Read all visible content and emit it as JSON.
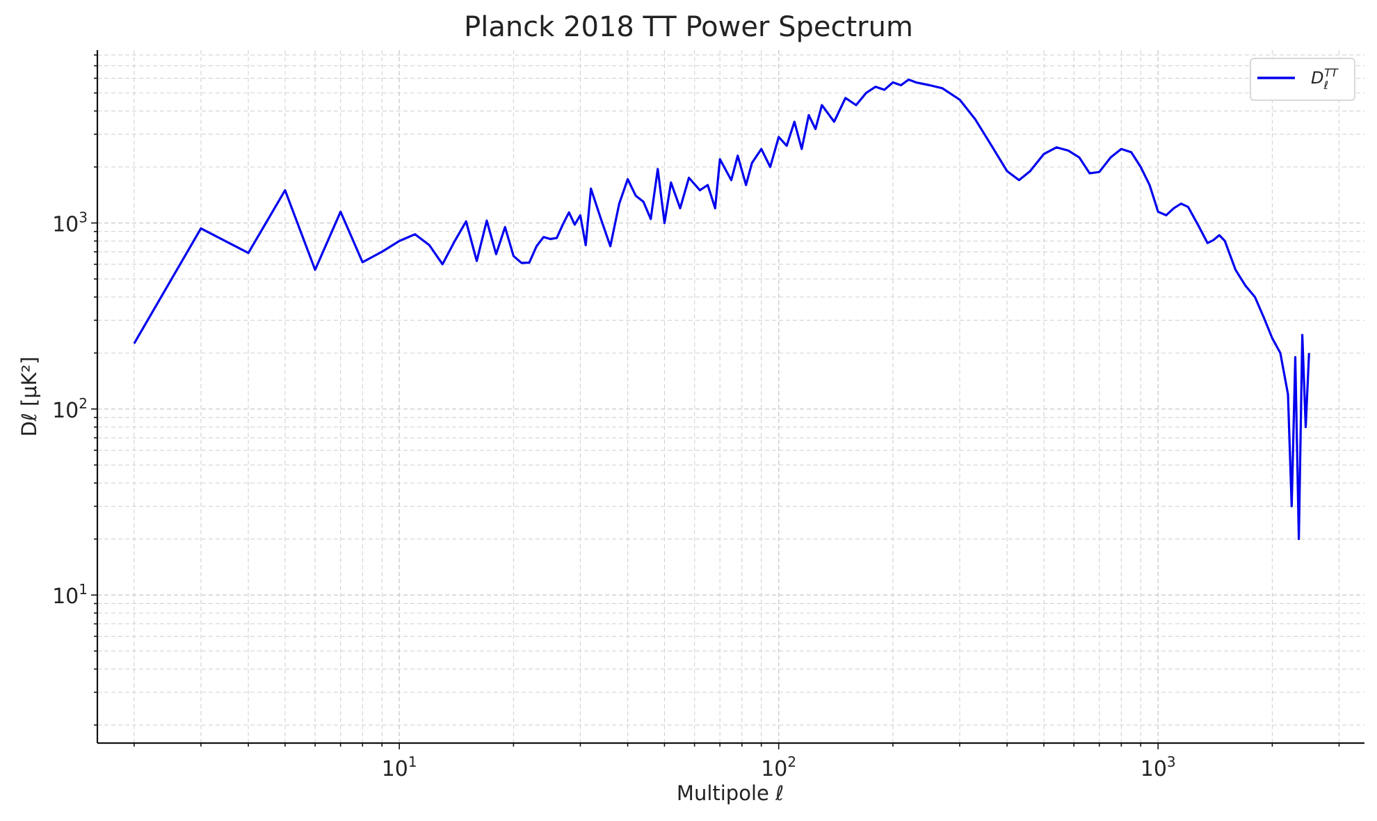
{
  "chart_data": {
    "type": "line",
    "title": "Planck 2018 TT Power Spectrum",
    "xlabel": "Multipole ℓ",
    "ylabel": "Dℓ [μK²]",
    "xscale": "log",
    "yscale": "log",
    "xlim": [
      1.6,
      3500
    ],
    "ylim": [
      1.6,
      8500
    ],
    "xticks": [
      {
        "value": 10,
        "base": "10",
        "exp": "1"
      },
      {
        "value": 100,
        "base": "10",
        "exp": "2"
      },
      {
        "value": 1000,
        "base": "10",
        "exp": "3"
      }
    ],
    "yticks": [
      {
        "value": 10,
        "base": "10",
        "exp": "1"
      },
      {
        "value": 100,
        "base": "10",
        "exp": "2"
      },
      {
        "value": 1000,
        "base": "10",
        "exp": "3"
      }
    ],
    "grid": true,
    "legend": {
      "placement": "top-right",
      "entries": [
        {
          "label_main": "D",
          "label_sub": "ℓ",
          "label_sup": "TT",
          "color": "#0000ee"
        }
      ]
    },
    "series": [
      {
        "name": "Dℓ TT",
        "color": "#0000ee",
        "points": [
          [
            2,
            225
          ],
          [
            3,
            935
          ],
          [
            4,
            690
          ],
          [
            5,
            1500
          ],
          [
            6,
            560
          ],
          [
            7,
            1150
          ],
          [
            8,
            615
          ],
          [
            9,
            700
          ],
          [
            10,
            800
          ],
          [
            11,
            870
          ],
          [
            12,
            760
          ],
          [
            13,
            600
          ],
          [
            14,
            800
          ],
          [
            15,
            1020
          ],
          [
            16,
            625
          ],
          [
            17,
            1030
          ],
          [
            18,
            680
          ],
          [
            19,
            950
          ],
          [
            20,
            665
          ],
          [
            21,
            610
          ],
          [
            22,
            612
          ],
          [
            23,
            750
          ],
          [
            24,
            840
          ],
          [
            25,
            820
          ],
          [
            26,
            830
          ],
          [
            27,
            985
          ],
          [
            28,
            1140
          ],
          [
            29,
            980
          ],
          [
            30,
            1100
          ],
          [
            31,
            760
          ],
          [
            32,
            1530
          ],
          [
            34,
            1050
          ],
          [
            36,
            750
          ],
          [
            38,
            1270
          ],
          [
            40,
            1720
          ],
          [
            42,
            1400
          ],
          [
            44,
            1300
          ],
          [
            46,
            1050
          ],
          [
            48,
            1950
          ],
          [
            50,
            1000
          ],
          [
            52,
            1650
          ],
          [
            55,
            1200
          ],
          [
            58,
            1750
          ],
          [
            62,
            1500
          ],
          [
            65,
            1600
          ],
          [
            68,
            1200
          ],
          [
            70,
            2200
          ],
          [
            75,
            1700
          ],
          [
            78,
            2300
          ],
          [
            82,
            1600
          ],
          [
            85,
            2100
          ],
          [
            90,
            2500
          ],
          [
            95,
            2000
          ],
          [
            100,
            2900
          ],
          [
            105,
            2600
          ],
          [
            110,
            3500
          ],
          [
            115,
            2500
          ],
          [
            120,
            3800
          ],
          [
            125,
            3200
          ],
          [
            130,
            4300
          ],
          [
            140,
            3500
          ],
          [
            150,
            4700
          ],
          [
            160,
            4300
          ],
          [
            170,
            5000
          ],
          [
            180,
            5400
          ],
          [
            190,
            5200
          ],
          [
            200,
            5700
          ],
          [
            210,
            5500
          ],
          [
            220,
            5900
          ],
          [
            230,
            5700
          ],
          [
            250,
            5500
          ],
          [
            270,
            5300
          ],
          [
            300,
            4600
          ],
          [
            330,
            3600
          ],
          [
            360,
            2700
          ],
          [
            400,
            1900
          ],
          [
            430,
            1700
          ],
          [
            460,
            1900
          ],
          [
            500,
            2350
          ],
          [
            540,
            2550
          ],
          [
            580,
            2450
          ],
          [
            620,
            2250
          ],
          [
            660,
            1850
          ],
          [
            700,
            1880
          ],
          [
            750,
            2250
          ],
          [
            800,
            2500
          ],
          [
            850,
            2400
          ],
          [
            900,
            2000
          ],
          [
            950,
            1600
          ],
          [
            1000,
            1150
          ],
          [
            1050,
            1100
          ],
          [
            1100,
            1200
          ],
          [
            1150,
            1270
          ],
          [
            1200,
            1220
          ],
          [
            1280,
            960
          ],
          [
            1350,
            780
          ],
          [
            1400,
            810
          ],
          [
            1450,
            860
          ],
          [
            1500,
            800
          ],
          [
            1600,
            560
          ],
          [
            1700,
            460
          ],
          [
            1800,
            400
          ],
          [
            1900,
            310
          ],
          [
            2000,
            240
          ],
          [
            2100,
            200
          ],
          [
            2200,
            120
          ],
          [
            2250,
            30
          ],
          [
            2300,
            190
          ],
          [
            2350,
            20
          ],
          [
            2400,
            250
          ],
          [
            2450,
            80
          ],
          [
            2500,
            200
          ]
        ]
      }
    ]
  }
}
